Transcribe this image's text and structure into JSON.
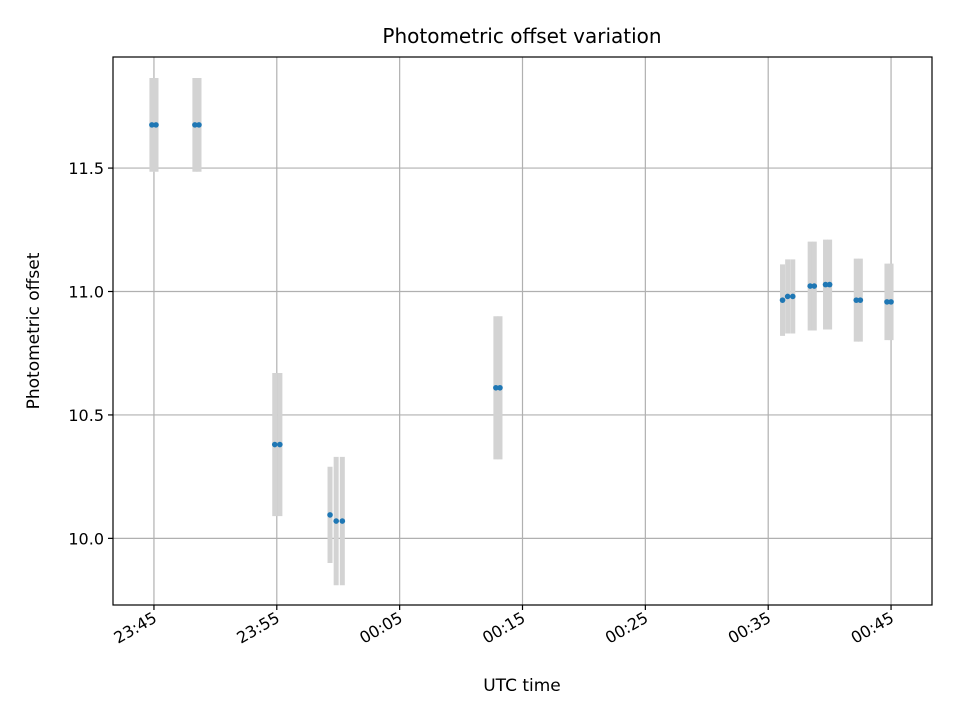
{
  "chart_data": {
    "type": "scatter",
    "title": "Photometric offset variation",
    "xlabel": "UTC time",
    "ylabel": "Photometric offset",
    "x_is_time": true,
    "xlim": [
      "23:41:40",
      "00:48:20"
    ],
    "ylim": [
      9.73,
      11.95
    ],
    "x_ticks": [
      "23:45",
      "23:55",
      "00:05",
      "00:15",
      "00:25",
      "00:35",
      "00:45"
    ],
    "y_ticks": [
      "10.0",
      "10.5",
      "11.0",
      "11.5"
    ],
    "grid": true,
    "point_color": "#1f77b4",
    "errorbar_color": "#d3d3d3",
    "series": [
      {
        "points": [
          {
            "x": "23:44:50",
            "y": 11.675,
            "err": 0.19
          },
          {
            "x": "23:45:10",
            "y": 11.675,
            "err": 0.19
          },
          {
            "x": "23:48:20",
            "y": 11.675,
            "err": 0.19
          },
          {
            "x": "23:48:40",
            "y": 11.675,
            "err": 0.19
          },
          {
            "x": "23:54:50",
            "y": 10.38,
            "err": 0.29
          },
          {
            "x": "23:55:15",
            "y": 10.38,
            "err": 0.29
          },
          {
            "x": "23:59:20",
            "y": 10.095,
            "err": 0.195
          },
          {
            "x": "23:59:50",
            "y": 10.07,
            "err": 0.26
          },
          {
            "x": "00:00:20",
            "y": 10.07,
            "err": 0.26
          },
          {
            "x": "00:12:50",
            "y": 10.61,
            "err": 0.29
          },
          {
            "x": "00:13:10",
            "y": 10.61,
            "err": 0.29
          },
          {
            "x": "00:36:10",
            "y": 10.965,
            "err": 0.145
          },
          {
            "x": "00:36:35",
            "y": 10.98,
            "err": 0.15
          },
          {
            "x": "00:37:00",
            "y": 10.98,
            "err": 0.15
          },
          {
            "x": "00:38:25",
            "y": 11.022,
            "err": 0.18
          },
          {
            "x": "00:38:45",
            "y": 11.022,
            "err": 0.18
          },
          {
            "x": "00:39:40",
            "y": 11.028,
            "err": 0.182
          },
          {
            "x": "00:40:00",
            "y": 11.028,
            "err": 0.182
          },
          {
            "x": "00:42:10",
            "y": 10.965,
            "err": 0.168
          },
          {
            "x": "00:42:30",
            "y": 10.965,
            "err": 0.168
          },
          {
            "x": "00:44:40",
            "y": 10.958,
            "err": 0.155
          },
          {
            "x": "00:45:00",
            "y": 10.958,
            "err": 0.155
          }
        ]
      }
    ]
  }
}
